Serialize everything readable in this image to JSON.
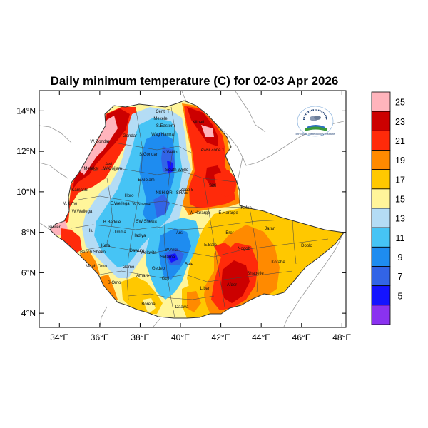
{
  "title": "Daily minimum temperature (C) for 02-03 Apr 2026",
  "map": {
    "x_ticks": [
      "34°E",
      "36°E",
      "38°E",
      "40°E",
      "42°E",
      "44°E",
      "46°E",
      "48°E"
    ],
    "y_ticks": [
      "14°N",
      "12°N",
      "10°N",
      "8°N",
      "6°N",
      "4°N"
    ],
    "lon_range": [
      33,
      48.2
    ],
    "lat_range": [
      3.3,
      15
    ],
    "region_labels": [
      "Cent. T",
      "Mekele",
      "S.Eastern",
      "Kilbati",
      "W.Gondar",
      "Gondar",
      "Wag Hamra",
      "Awsi Zone 1",
      "S.Gondar",
      "N.Wello",
      "W.Gojjam",
      "Metekel",
      "Awi",
      "South Wello",
      "E.Gojam",
      "Zone 5",
      "Sitti",
      "Horo",
      "NSH.OR",
      "SHAE",
      "W.Shewa",
      "W.Hararge",
      "E.Hararge",
      "Fafan",
      "Kamashi",
      "M.Kimo",
      "W.Wellega",
      "E.Wellega",
      "Nuwer",
      "B.Bedele",
      "Ilu",
      "SW.Shewa",
      "Hadiya",
      "Arsi",
      "Jarar",
      "Erer",
      "Doolo",
      "Jimma",
      "Kefa",
      "Bench Sheko",
      "Dawuro",
      "Wolayita",
      "E.Bale",
      "Nogob",
      "Korahe",
      "W.Arsi",
      "Sidama",
      "Bale",
      "Mirab Omo",
      "Gamo",
      "Gedeo",
      "Shabelle",
      "S.Omo",
      "Amaro",
      "Guji",
      "Liban",
      "Afder",
      "Borena",
      "Daawa"
    ]
  },
  "colorbar": {
    "labels": [
      "25",
      "23",
      "21",
      "19",
      "17",
      "15",
      "13",
      "11",
      "9",
      "7",
      "5"
    ],
    "colors": [
      "#ffb4bc",
      "#cc0000",
      "#ff2a0a",
      "#ff8a00",
      "#ffc800",
      "#fff59a",
      "#b4dcf5",
      "#46c4f5",
      "#1e8cf0",
      "#3264e6",
      "#1414ff",
      "#8a32f0"
    ]
  },
  "colors": {
    "outside_land": "#ffffff",
    "coast": "#999999"
  },
  "logo": {
    "text": "Ethiopian Meteorology Institute"
  }
}
